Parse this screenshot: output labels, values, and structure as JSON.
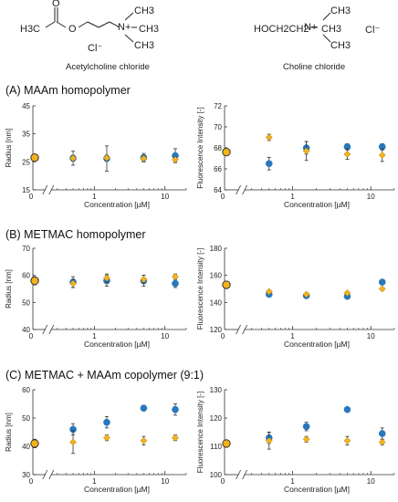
{
  "molecules": [
    {
      "name": "Acetylcholine chloride",
      "formula_parts": [
        "H3C",
        "O",
        "O",
        "N+",
        "CH3",
        "CH3",
        "CH3",
        "Cl⁻"
      ]
    },
    {
      "name": "Choline chloride",
      "formula_parts": [
        "HOCH2CH2",
        "N+",
        "CH3",
        "CH3",
        "CH3",
        "Cl⁻"
      ]
    }
  ],
  "sections": [
    {
      "label": "(A) MAAm homopolymer"
    },
    {
      "label": "(B) METMAC homopolymer"
    },
    {
      "label": "(C) METMAC + MAAm copolymer (9:1)"
    }
  ],
  "colors": {
    "acetylcholine": "#2878bd",
    "choline": "#f5b21a",
    "outline": "#333333"
  },
  "chart_data": [
    {
      "type": "scatter",
      "section": "A",
      "ylabel": "Radius [nm]",
      "xlabel": "Concentration [µM]",
      "x_scale": "log",
      "x_ticks": [
        "0",
        "1",
        "10"
      ],
      "y_ticks": [
        "15",
        "25",
        "35",
        "45"
      ],
      "ylim": [
        15,
        45
      ],
      "zero_point": {
        "value": 26.5,
        "error": 1.0
      },
      "series": [
        {
          "x": [
            0.5,
            1.5,
            5,
            14
          ],
          "values": [
            26.3,
            26.2,
            26.5,
            27.2
          ],
          "errors": [
            2.5,
            4.5,
            1.5,
            2.5
          ]
        },
        {
          "x": [
            0.5,
            1.5,
            5,
            14
          ],
          "values": [
            26.3,
            26.4,
            26.2,
            25.8
          ],
          "errors": [
            1.0,
            1.0,
            1.0,
            1.0
          ]
        }
      ]
    },
    {
      "type": "scatter",
      "section": "A",
      "ylabel": "Fluorescence Intensity [-]",
      "xlabel": "Concentration [µM]",
      "x_scale": "log",
      "x_ticks": [
        "0",
        "1",
        "10"
      ],
      "y_ticks": [
        "64",
        "66",
        "68",
        "70",
        "72"
      ],
      "ylim": [
        64,
        72
      ],
      "zero_point": {
        "value": 67.6,
        "error": 0.3
      },
      "series": [
        {
          "x": [
            0.5,
            1.5,
            5,
            14
          ],
          "values": [
            66.5,
            68.0,
            68.1,
            68.1
          ],
          "errors": [
            0.6,
            0.6,
            0.3,
            0.3
          ]
        },
        {
          "x": [
            0.5,
            1.5,
            5,
            14
          ],
          "values": [
            69.0,
            67.7,
            67.4,
            67.3
          ],
          "errors": [
            0.3,
            0.9,
            0.5,
            0.6
          ]
        }
      ]
    },
    {
      "type": "scatter",
      "section": "B",
      "ylabel": "Radius [nm]",
      "xlabel": "Concentration [µM]",
      "x_scale": "log",
      "x_ticks": [
        "0",
        "1",
        "10"
      ],
      "y_ticks": [
        "40",
        "50",
        "60",
        "70"
      ],
      "ylim": [
        40,
        70
      ],
      "zero_point": {
        "value": 58.0,
        "error": 1.5
      },
      "series": [
        {
          "x": [
            0.5,
            1.5,
            5,
            14
          ],
          "values": [
            57.5,
            58.0,
            58.0,
            57.0
          ],
          "errors": [
            2.0,
            2.0,
            2.0,
            1.5
          ]
        },
        {
          "x": [
            0.5,
            1.5,
            5,
            14
          ],
          "values": [
            57.0,
            59.0,
            58.5,
            59.5
          ],
          "errors": [
            1.5,
            1.5,
            1.5,
            1.0
          ]
        }
      ]
    },
    {
      "type": "scatter",
      "section": "B",
      "ylabel": "Fluorescence Intensity [-]",
      "xlabel": "Concentration [µM]",
      "x_scale": "log",
      "x_ticks": [
        "0",
        "1",
        "10"
      ],
      "y_ticks": [
        "120",
        "140",
        "160",
        "180"
      ],
      "ylim": [
        120,
        180
      ],
      "zero_point": {
        "value": 153.0,
        "error": 2.0
      },
      "series": [
        {
          "x": [
            0.5,
            1.5,
            5,
            14
          ],
          "values": [
            146.0,
            145.0,
            144.5,
            155.0
          ],
          "errors": [
            1.0,
            1.0,
            1.0,
            1.0
          ]
        },
        {
          "x": [
            0.5,
            1.5,
            5,
            14
          ],
          "values": [
            148.0,
            146.0,
            147.0,
            150.0
          ],
          "errors": [
            1.0,
            1.0,
            1.0,
            1.0
          ]
        }
      ]
    },
    {
      "type": "scatter",
      "section": "C",
      "ylabel": "Radius [nm]",
      "xlabel": "Concentration [µM]",
      "x_scale": "log",
      "x_ticks": [
        "0",
        "1",
        "10"
      ],
      "y_ticks": [
        "30",
        "40",
        "50",
        "60"
      ],
      "ylim": [
        30,
        60
      ],
      "zero_point": {
        "value": 41.0,
        "error": 1.5
      },
      "series": [
        {
          "x": [
            0.5,
            1.5,
            5,
            14
          ],
          "values": [
            46.0,
            48.5,
            53.5,
            53.0
          ],
          "errors": [
            2.0,
            2.0,
            1.0,
            2.0
          ]
        },
        {
          "x": [
            0.5,
            1.5,
            5,
            14
          ],
          "values": [
            41.5,
            43.0,
            42.0,
            43.0
          ],
          "errors": [
            4.0,
            1.0,
            1.5,
            1.0
          ]
        }
      ]
    },
    {
      "type": "scatter",
      "section": "C",
      "ylabel": "Fluorescence Intensity [-]",
      "xlabel": "Concentration [µM]",
      "x_scale": "log",
      "x_ticks": [
        "0",
        "1",
        "10"
      ],
      "y_ticks": [
        "100",
        "110",
        "120",
        "130"
      ],
      "ylim": [
        100,
        130
      ],
      "zero_point": {
        "value": 111.0,
        "error": 1.0
      },
      "series": [
        {
          "x": [
            0.5,
            1.5,
            5,
            14
          ],
          "values": [
            113.0,
            117.0,
            123.0,
            114.5
          ],
          "errors": [
            2.0,
            1.5,
            0.5,
            2.0
          ]
        },
        {
          "x": [
            0.5,
            1.5,
            5,
            14
          ],
          "values": [
            112.0,
            112.5,
            112.0,
            111.5
          ],
          "errors": [
            3.0,
            1.0,
            1.5,
            1.0
          ]
        }
      ]
    }
  ]
}
